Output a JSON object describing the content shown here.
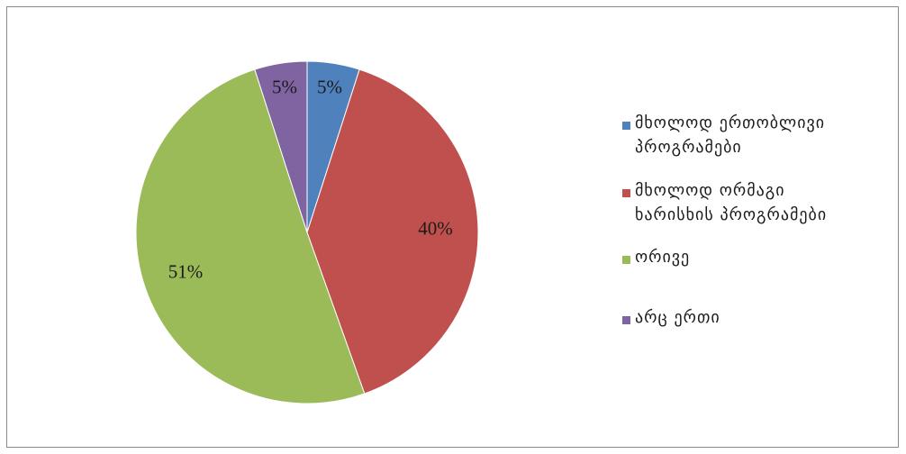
{
  "chart_data": {
    "type": "pie",
    "title": "",
    "legend_position": "right",
    "slices": [
      {
        "label": "მხოლოდ  ერთობლივი  პროგრამები",
        "value": 5,
        "display": "5%",
        "color": "#4f81bd"
      },
      {
        "label": "მხოლოდ  ორმაგი  ხარისხის  პროგრამები",
        "value": 40,
        "display": "40%",
        "color": "#c0504d"
      },
      {
        "label": "ორივე",
        "value": 51,
        "display": "51%",
        "color": "#9bbb59"
      },
      {
        "label": "არც  ერთი",
        "value": 5,
        "display": "5%",
        "color": "#8064a2"
      }
    ]
  },
  "legend": {
    "items": [
      {
        "text": "მხოლოდ  ერთობლივი\nპროგრამები",
        "color": "#4f81bd"
      },
      {
        "text": "მხოლოდ  ორმაგი\nხარისხის  პროგრამები",
        "color": "#c0504d"
      },
      {
        "text": "ორივე",
        "color": "#9bbb59"
      },
      {
        "text": "არც  ერთი",
        "color": "#8064a2"
      }
    ]
  }
}
